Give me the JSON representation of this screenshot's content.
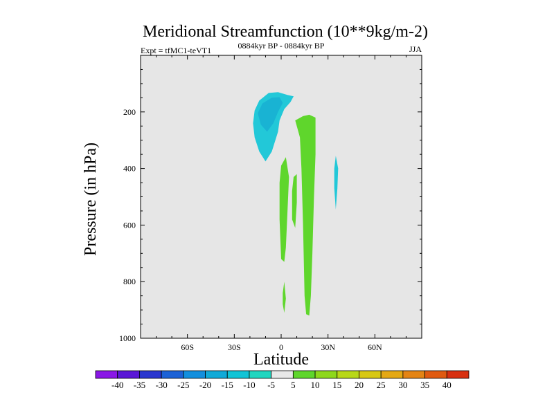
{
  "chart_data": {
    "type": "contour",
    "title": "Meridional Streamfunction (10**9kg/m-2)",
    "subtitle_left": "Expt = tfMC1-teVT1",
    "subtitle_center": "0884kyr BP - 0884kyr BP",
    "subtitle_right": "JJA",
    "xlabel": "Latitude",
    "ylabel": "Pressure (in hPa)",
    "xlim": [
      -90,
      90
    ],
    "ylim": [
      1000,
      0
    ],
    "x_ticks": [
      {
        "value": -60,
        "label": "60S"
      },
      {
        "value": -30,
        "label": "30S"
      },
      {
        "value": 0,
        "label": "0"
      },
      {
        "value": 30,
        "label": "30N"
      },
      {
        "value": 60,
        "label": "60N"
      }
    ],
    "y_ticks": [
      {
        "value": 200,
        "label": "200"
      },
      {
        "value": 400,
        "label": "400"
      },
      {
        "value": 600,
        "label": "600"
      },
      {
        "value": 800,
        "label": "800"
      },
      {
        "value": 1000,
        "label": "1000"
      }
    ],
    "background_color": "#e6e6e6",
    "regions": [
      {
        "name": "upper-negative-cell",
        "level": -10,
        "color": "#22c8d8",
        "points": [
          [
            -14,
            160
          ],
          [
            -8,
            133
          ],
          [
            -2,
            130
          ],
          [
            4,
            140
          ],
          [
            8,
            145
          ],
          [
            6,
            165
          ],
          [
            2,
            190
          ],
          [
            -1,
            230
          ],
          [
            -2,
            270
          ],
          [
            -6,
            340
          ],
          [
            -10,
            375
          ],
          [
            -14,
            340
          ],
          [
            -17,
            290
          ],
          [
            -18,
            240
          ],
          [
            -17,
            195
          ]
        ]
      },
      {
        "name": "upper-negative-core",
        "level": -15,
        "color": "#19b3d3",
        "points": [
          [
            -12,
            170
          ],
          [
            -6,
            150
          ],
          [
            -1,
            148
          ],
          [
            1,
            168
          ],
          [
            -2,
            200
          ],
          [
            -5,
            240
          ],
          [
            -9,
            270
          ],
          [
            -13,
            245
          ],
          [
            -15,
            205
          ]
        ]
      },
      {
        "name": "nh-tropical-positive-cell",
        "level": 5,
        "color": "#5fd62c",
        "points": [
          [
            9,
            230
          ],
          [
            14,
            215
          ],
          [
            18,
            210
          ],
          [
            22,
            220
          ],
          [
            22,
            350
          ],
          [
            21,
            500
          ],
          [
            20,
            700
          ],
          [
            19,
            850
          ],
          [
            18,
            920
          ],
          [
            16,
            915
          ],
          [
            15,
            850
          ],
          [
            14,
            600
          ],
          [
            13,
            400
          ],
          [
            12,
            290
          ]
        ]
      },
      {
        "name": "eq-positive-cell-a",
        "level": 5,
        "color": "#5fd62c",
        "points": [
          [
            0,
            390
          ],
          [
            3,
            360
          ],
          [
            5,
            430
          ],
          [
            4,
            560
          ],
          [
            3,
            680
          ],
          [
            2,
            730
          ],
          [
            0,
            720
          ],
          [
            -1,
            580
          ],
          [
            -1,
            450
          ]
        ]
      },
      {
        "name": "eq-positive-cell-b",
        "level": 5,
        "color": "#5fd62c",
        "points": [
          [
            8,
            430
          ],
          [
            10,
            420
          ],
          [
            10,
            520
          ],
          [
            9,
            610
          ],
          [
            7,
            580
          ],
          [
            7,
            480
          ]
        ]
      },
      {
        "name": "eq-positive-cell-c",
        "level": 5,
        "color": "#5fd62c",
        "points": [
          [
            1,
            840
          ],
          [
            2,
            800
          ],
          [
            3,
            860
          ],
          [
            2,
            910
          ],
          [
            1,
            880
          ]
        ]
      },
      {
        "name": "nh-negative-strip",
        "level": -10,
        "color": "#22c8d8",
        "points": [
          [
            35,
            355
          ],
          [
            36.5,
            400
          ],
          [
            36,
            470
          ],
          [
            35,
            545
          ],
          [
            34,
            470
          ],
          [
            34,
            400
          ]
        ]
      }
    ],
    "colorbar": {
      "levels": [
        -40,
        -35,
        -30,
        -25,
        -20,
        -15,
        -10,
        -5,
        5,
        10,
        15,
        20,
        25,
        30,
        35,
        40
      ],
      "colors": [
        "#8a17e6",
        "#5a16d6",
        "#2a36cf",
        "#1c62d6",
        "#128fde",
        "#10aad8",
        "#10c4d6",
        "#20d6c0",
        "#e8e8e8",
        "#5fd62c",
        "#8ed81c",
        "#b8d818",
        "#d8c814",
        "#e4a814",
        "#e48414",
        "#e05a10",
        "#d83010"
      ]
    }
  }
}
